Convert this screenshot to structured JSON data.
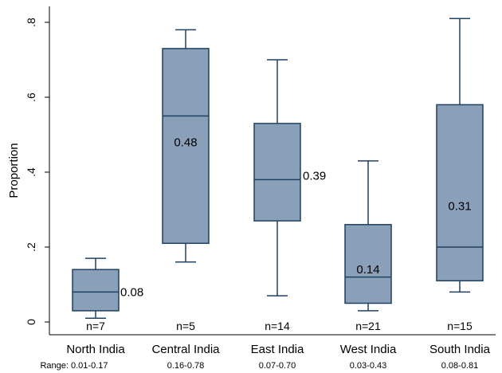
{
  "chart_data": {
    "type": "box",
    "ylabel": "Proportion",
    "ylim": [
      0,
      0.86
    ],
    "yticks": [
      0,
      0.2,
      0.4,
      0.6,
      0.8
    ],
    "ytick_labels": [
      "0",
      ".2",
      ".4",
      ".6",
      ".8"
    ],
    "grid": false,
    "box_color": "#8aa0b8",
    "line_color": "#1f4060",
    "categories": [
      "North India",
      "Central India",
      "East India",
      "West India",
      "South India"
    ],
    "boxes": [
      {
        "category": "North India",
        "min": 0.01,
        "q1": 0.03,
        "median": 0.08,
        "q3": 0.14,
        "max": 0.17,
        "mean_label": "0.08",
        "n_label": "n=7",
        "range_label": "Range: 0.01-0.17"
      },
      {
        "category": "Central India",
        "min": 0.16,
        "q1": 0.21,
        "median": 0.55,
        "q3": 0.73,
        "max": 0.78,
        "mean_label": "0.48",
        "n_label": "n=5",
        "range_label": "0.16-0.78"
      },
      {
        "category": "East India",
        "min": 0.07,
        "q1": 0.27,
        "median": 0.38,
        "q3": 0.53,
        "max": 0.7,
        "mean_label": "0.39",
        "n_label": "n=14",
        "range_label": "0.07-0.70"
      },
      {
        "category": "West India",
        "min": 0.03,
        "q1": 0.05,
        "median": 0.12,
        "q3": 0.26,
        "max": 0.43,
        "mean_label": "0.14",
        "n_label": "n=21",
        "range_label": "0.03-0.43"
      },
      {
        "category": "South India",
        "min": 0.08,
        "q1": 0.11,
        "median": 0.2,
        "q3": 0.58,
        "max": 0.81,
        "mean_label": "0.31",
        "n_label": "n=15",
        "range_label": "0.08-0.81"
      }
    ]
  }
}
